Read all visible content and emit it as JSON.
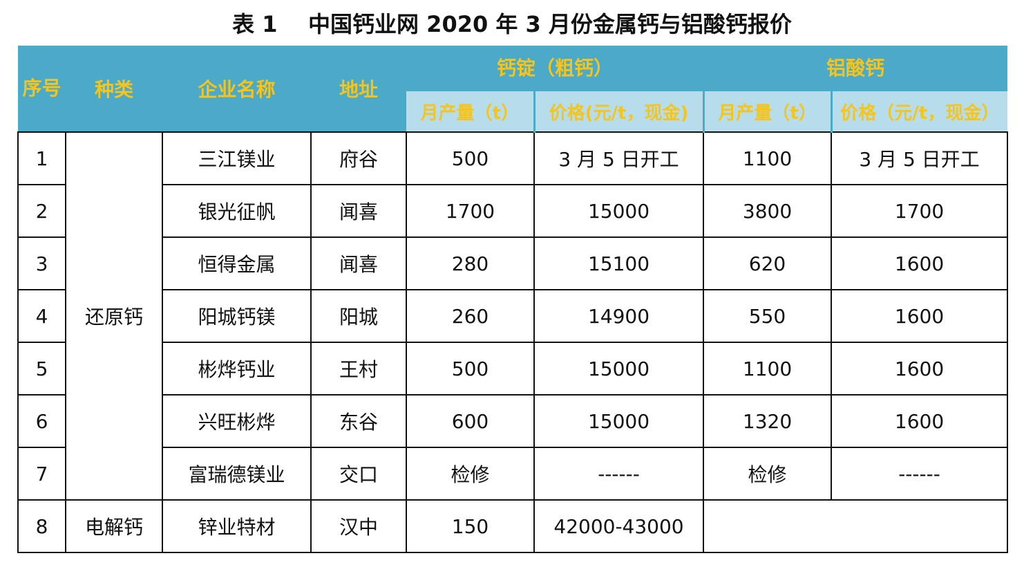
{
  "caption": "表 1    中国钙业网 2020 年 3 月份金属钙与铝酸钙报价",
  "header": {
    "seq": "序号",
    "kind": "种类",
    "company": "企业名称",
    "address": "地址",
    "group_ingot": "钙锭（粗钙）",
    "group_aluminate": "铝酸钙",
    "ingot_output": "月产量（t）",
    "ingot_price": "价格(元/t，现金)",
    "alu_output": "月产量（t）",
    "alu_price": "价格（元/t，现金）"
  },
  "kinds": {
    "reduced": "还原钙",
    "electrolytic": "电解钙"
  },
  "rows": [
    {
      "seq": "1",
      "company": "三江镁业",
      "address": "府谷",
      "ingot_output": "500",
      "ingot_price": "3 月 5 日开工",
      "alu_output": "1100",
      "alu_price": "3 月 5 日开工"
    },
    {
      "seq": "2",
      "company": "银光征帆",
      "address": "闻喜",
      "ingot_output": "1700",
      "ingot_price": "15000",
      "alu_output": "3800",
      "alu_price": "1700"
    },
    {
      "seq": "3",
      "company": "恒得金属",
      "address": "闻喜",
      "ingot_output": "280",
      "ingot_price": "15100",
      "alu_output": "620",
      "alu_price": "1600"
    },
    {
      "seq": "4",
      "company": "阳城钙镁",
      "address": "阳城",
      "ingot_output": "260",
      "ingot_price": "14900",
      "alu_output": "550",
      "alu_price": "1600"
    },
    {
      "seq": "5",
      "company": "彬烨钙业",
      "address": "王村",
      "ingot_output": "500",
      "ingot_price": "15000",
      "alu_output": "1100",
      "alu_price": "1600"
    },
    {
      "seq": "6",
      "company": "兴旺彬烨",
      "address": "东谷",
      "ingot_output": "600",
      "ingot_price": "15000",
      "alu_output": "1320",
      "alu_price": "1600"
    },
    {
      "seq": "7",
      "company": "富瑞德镁业",
      "address": "交口",
      "ingot_output": "检修",
      "ingot_price": "------",
      "alu_output": "检修",
      "alu_price": "------"
    },
    {
      "seq": "8",
      "company": "锌业特材",
      "address": "汉中",
      "ingot_output": "150",
      "ingot_price": "42000-43000"
    }
  ]
}
